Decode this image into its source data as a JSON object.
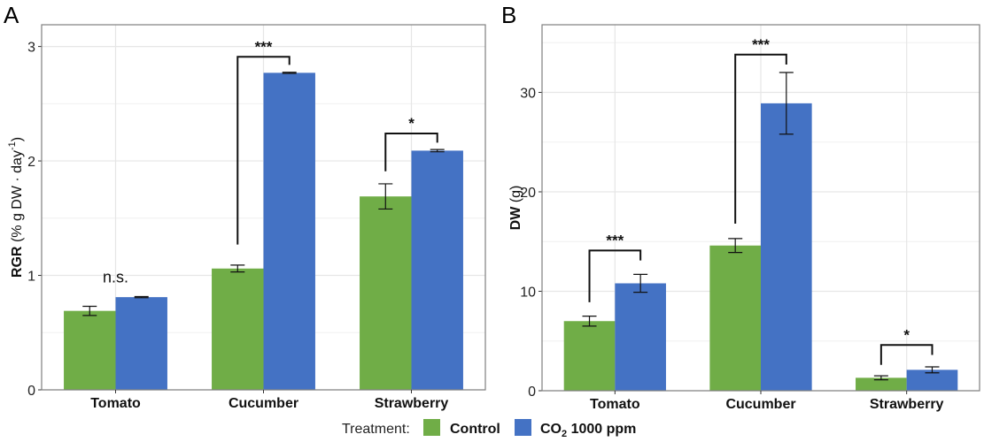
{
  "legend": {
    "title": "Treatment:",
    "items": [
      {
        "label": "Control",
        "color": "#70ad47"
      },
      {
        "label": "CO",
        "sub": "2",
        "rest": " 1000 ppm",
        "color": "#4472c4"
      }
    ]
  },
  "chart_data": [
    {
      "panel": "A",
      "type": "bar",
      "ylabel_bold": "RGR",
      "ylabel_rest": " (% g DW · day",
      "ylabel_sup": "-1",
      "ylabel_close": ")",
      "xlabel": "",
      "categories": [
        "Tomato",
        "Cucumber",
        "Strawberry"
      ],
      "ylim": [
        0,
        3.19
      ],
      "yticks": [
        0,
        1,
        2,
        3
      ],
      "ytick_labels": [
        "0",
        "1",
        "2",
        "3"
      ],
      "grid": true,
      "series": [
        {
          "name": "Control",
          "color": "#70ad47",
          "values": [
            0.69,
            1.06,
            1.69
          ],
          "errors": [
            0.04,
            0.03,
            0.11
          ]
        },
        {
          "name": "CO2 1000 ppm",
          "color": "#4472c4",
          "values": [
            0.81,
            2.77,
            2.09
          ],
          "errors": [
            0.005,
            0.005,
            0.01
          ]
        }
      ],
      "significance": [
        {
          "category": "Tomato",
          "label": "n.s.",
          "bracket": false,
          "y": 0.94
        },
        {
          "category": "Cucumber",
          "label": "***",
          "bracket": true,
          "y": 2.91,
          "left_drop_to": 1.27,
          "right_drop_to": 2.84
        },
        {
          "category": "Strawberry",
          "label": "*",
          "bracket": true,
          "y": 2.24,
          "left_drop_to": 1.91,
          "right_drop_to": 2.16
        }
      ]
    },
    {
      "panel": "B",
      "type": "bar",
      "ylabel_bold": "DW",
      "ylabel_rest": " (g)",
      "xlabel": "",
      "categories": [
        "Tomato",
        "Cucumber",
        "Strawberry"
      ],
      "ylim": [
        0,
        36.8
      ],
      "yticks": [
        0,
        10,
        20,
        30
      ],
      "ytick_labels": [
        "0",
        "10",
        "20",
        "30"
      ],
      "grid": true,
      "series": [
        {
          "name": "Control",
          "color": "#70ad47",
          "values": [
            7.0,
            14.6,
            1.3
          ],
          "errors": [
            0.5,
            0.7,
            0.2
          ]
        },
        {
          "name": "CO2 1000 ppm",
          "color": "#4472c4",
          "values": [
            10.8,
            28.9,
            2.1
          ],
          "errors": [
            0.9,
            3.1,
            0.3
          ]
        }
      ],
      "significance": [
        {
          "category": "Tomato",
          "label": "***",
          "bracket": true,
          "y": 14.1,
          "left_drop_to": 8.9,
          "right_drop_to": 13.1
        },
        {
          "category": "Cucumber",
          "label": "***",
          "bracket": true,
          "y": 33.8,
          "left_drop_to": 16.8,
          "right_drop_to": 32.8
        },
        {
          "category": "Strawberry",
          "label": "*",
          "bracket": true,
          "y": 4.6,
          "left_drop_to": 2.6,
          "right_drop_to": 3.6
        }
      ]
    }
  ],
  "panel_labels": [
    "A",
    "B"
  ]
}
